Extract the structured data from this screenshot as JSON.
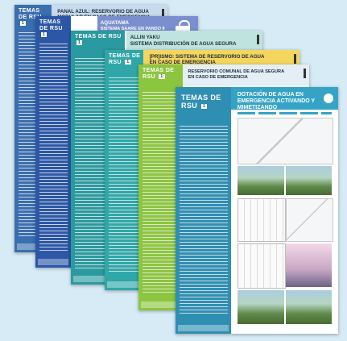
{
  "colors": {
    "background": "#d6ebf6",
    "sheet1": "#3a6fb0",
    "sheet2": "#2c57a6",
    "sheet3": "#2a9aa0",
    "sheet4": "#2fa7a8",
    "sheet5": "#8cc63f",
    "sheet6": "#2f8fb3"
  },
  "sheets": [
    {
      "tag": "TEMAS DE RSU",
      "num": "1",
      "title": "PANAL AZUL: RESERVORIO DE AGUA MODULAR EN CASO DE EMERGENCIA",
      "band_color": "#c7dbee",
      "side_color": "#3a6fb0"
    },
    {
      "tag": "TEMAS DE RSU",
      "num": "1",
      "title": "AQUATAMA",
      "subtitle": "SISTEMA SAARE EN PANDO II",
      "band_color": "#7b8fce",
      "side_color": "#2c57a6",
      "icon": "lock-icon"
    },
    {
      "tag": "TEMAS DE RSU",
      "num": "1",
      "title": "ALLIN YAKU",
      "subtitle": "SISTEMA DISTRIBUCIÓN DE AGUA SEGURA",
      "band_color": "#bfe4df",
      "side_color": "#2a9aa0"
    },
    {
      "tag": "TEMAS DE RSU",
      "num": "1",
      "title": "[PR]ISMO: SISTEMA DE RESERVORIO DE AGUA EN CASO DE EMERGENCIA",
      "band_color": "#f4d65e",
      "side_color": "#2fa7a8"
    },
    {
      "tag": "TEMAS DE RSU",
      "num": "1",
      "title": "RESERVORIO COMUNAL DE AGUA SEGURA EN CASO DE EMERGENCIA",
      "band_color": "#e3eef5",
      "side_color": "#8cc63f"
    },
    {
      "tag": "TEMAS DE RSU",
      "num": "1",
      "title": "DOTACIÓN DE AGUA EN EMERGENCIA ACTIVANDO Y MIMETIZANDO",
      "band_color": "#35a3c6",
      "side_color": "#2f8fb3"
    }
  ]
}
